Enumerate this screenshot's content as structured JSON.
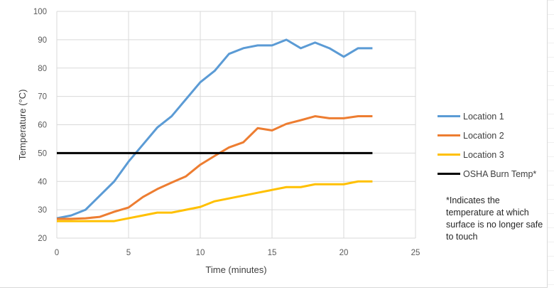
{
  "chart_data": {
    "type": "line",
    "title": "",
    "xlabel": "Time (minutes)",
    "ylabel": "Temperature (°C)",
    "xlim": [
      0,
      25
    ],
    "ylim": [
      20,
      100
    ],
    "xticks": [
      0,
      5,
      10,
      15,
      20,
      25
    ],
    "yticks": [
      20,
      30,
      40,
      50,
      60,
      70,
      80,
      90,
      100
    ],
    "grid": true,
    "legend_position": "right",
    "x": [
      0,
      1,
      2,
      3,
      4,
      5,
      6,
      7,
      8,
      9,
      10,
      11,
      12,
      13,
      14,
      15,
      16,
      17,
      18,
      19,
      20,
      21,
      22
    ],
    "series": [
      {
        "name": "Location 1",
        "color": "#5b9bd5",
        "values": [
          27,
          28,
          30,
          35,
          40,
          47,
          53,
          59,
          63,
          69,
          75,
          79,
          85,
          87,
          88,
          88,
          90,
          87,
          89,
          87,
          84,
          87,
          87
        ]
      },
      {
        "name": "Location 2",
        "color": "#ed7d31",
        "values": [
          26.8,
          26.8,
          27,
          27.5,
          29.3,
          30.8,
          34.5,
          37.3,
          39.6,
          41.8,
          45.9,
          49,
          52,
          53.8,
          58.8,
          58,
          60.3,
          61.6,
          63,
          62.3,
          62.3,
          63,
          63
        ]
      },
      {
        "name": "Location 3",
        "color": "#ffc000",
        "values": [
          26,
          26,
          26,
          26,
          26,
          27,
          28,
          29,
          29,
          30,
          31,
          33,
          34,
          35,
          36,
          37,
          38,
          38,
          39,
          39,
          39,
          40,
          40
        ]
      },
      {
        "name": "OSHA Burn Temp*",
        "color": "#000000",
        "values": [
          50,
          50,
          50,
          50,
          50,
          50,
          50,
          50,
          50,
          50,
          50,
          50,
          50,
          50,
          50,
          50,
          50,
          50,
          50,
          50,
          50,
          50,
          50
        ]
      }
    ],
    "annotation": "*Indicates the temperature at which surface is no longer safe to touch"
  }
}
